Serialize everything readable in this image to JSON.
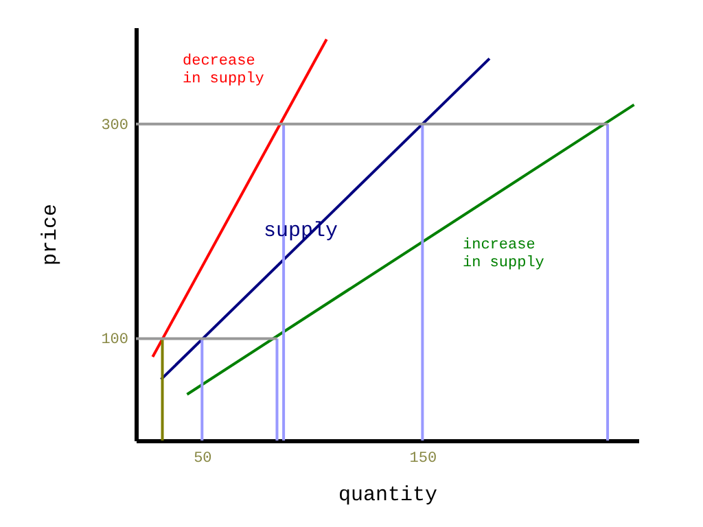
{
  "chart_data": {
    "type": "line",
    "xlabel": "quantity",
    "ylabel": "price",
    "xlim": [
      20,
      248
    ],
    "ylim": [
      5,
      390
    ],
    "xticks": [
      50,
      150
    ],
    "yticks": [
      100,
      300
    ],
    "grid": false,
    "marker": "none",
    "line_style": "solid",
    "series": [
      {
        "color": "#ff0000",
        "x": [
          27.6,
          106.5
        ],
        "values": [
          83,
          379
        ]
      },
      {
        "color": "#000080",
        "x": [
          31.4,
          180.4
        ],
        "values": [
          62,
          361
        ]
      },
      {
        "color": "#008000",
        "x": [
          43.2,
          246
        ],
        "values": [
          48,
          318
        ]
      },
      {
        "color": "#9999ff",
        "x": [
          50,
          50
        ],
        "values": [
          5,
          100
        ]
      },
      {
        "color": "#9999ff",
        "x": [
          150,
          150
        ],
        "values": [
          5,
          300
        ]
      },
      {
        "color": "#808000",
        "x": [
          32,
          32
        ],
        "values": [
          5,
          100
        ]
      },
      {
        "color": "#9999ff",
        "x": [
          84,
          84
        ],
        "values": [
          5,
          100
        ]
      },
      {
        "color": "#9999ff",
        "x": [
          87,
          87
        ],
        "values": [
          5,
          300
        ]
      },
      {
        "color": "#9999ff",
        "x": [
          234,
          234
        ],
        "values": [
          5,
          300
        ]
      },
      {
        "color": "#999999",
        "x": [
          20,
          84
        ],
        "values": [
          100,
          100
        ]
      },
      {
        "color": "#999999",
        "x": [
          20,
          234
        ],
        "values": [
          300,
          300
        ]
      }
    ],
    "annotations": [
      "decrease\nin supply",
      "supply",
      "increase\nin supply"
    ]
  }
}
